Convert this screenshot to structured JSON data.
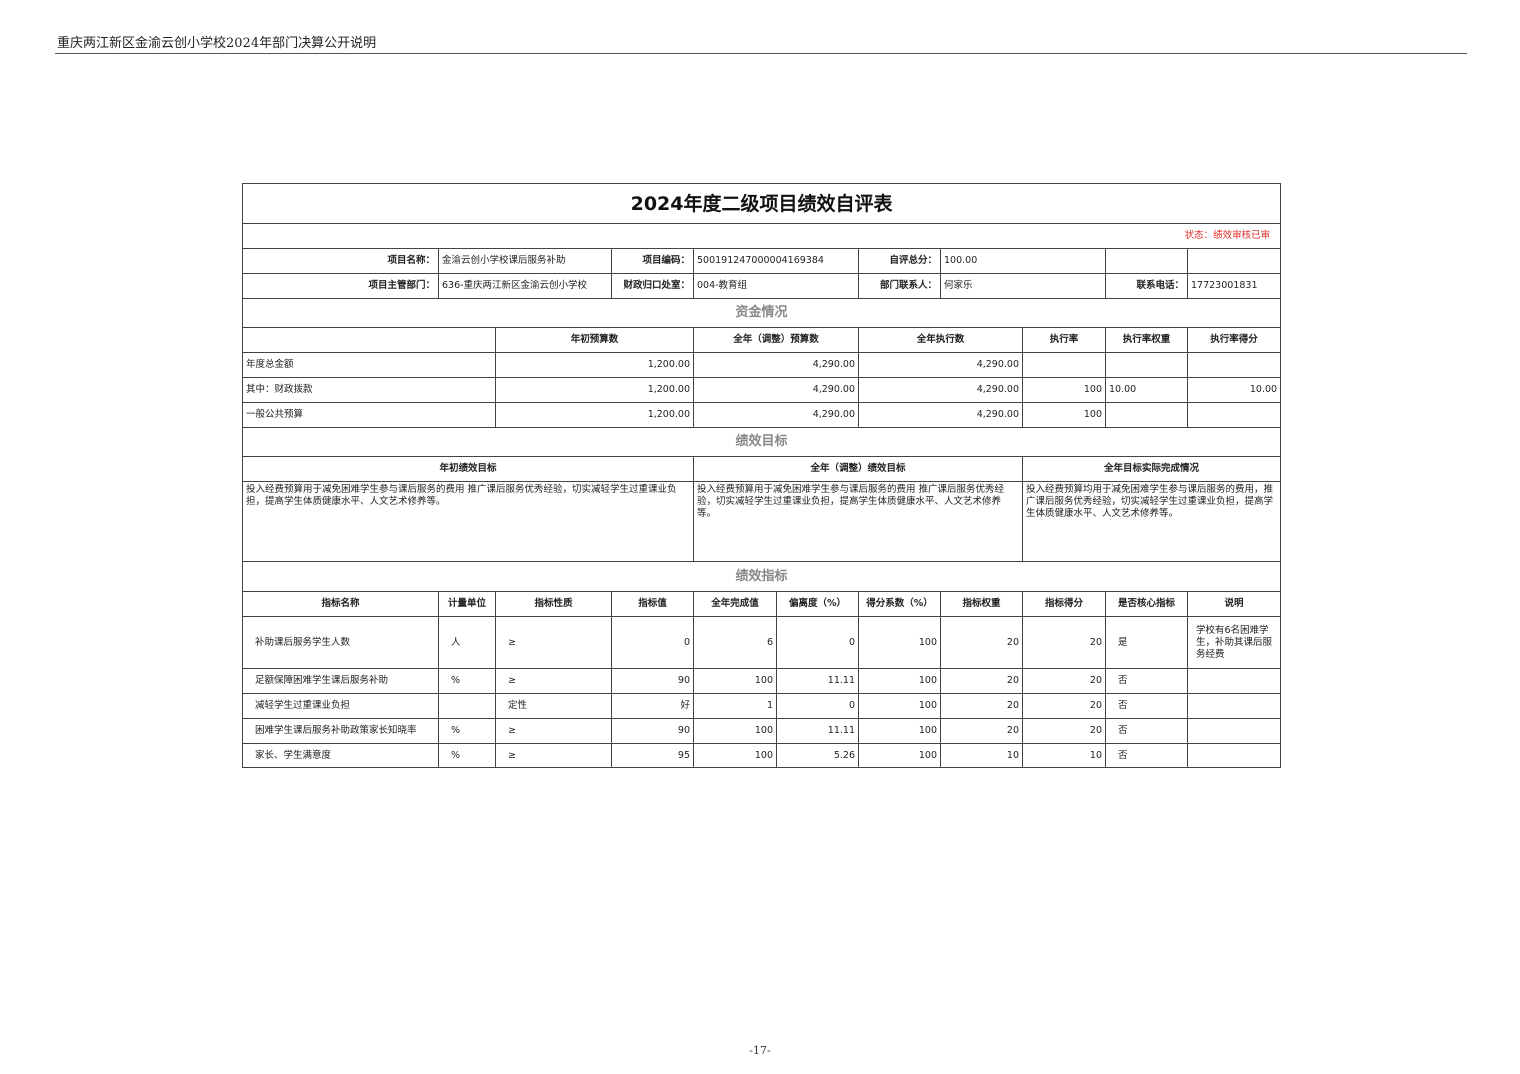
{
  "page_header": "重庆两江新区金渝云创小学校2024年部门决算公开说明",
  "page_number": "-17-",
  "form": {
    "title": "2024年度二级项目绩效自评表",
    "status": "状态：绩效审核已审",
    "info": {
      "project_name_label": "项目名称：",
      "project_name": "金渝云创小学校课后服务补助",
      "project_code_label": "项目编码：",
      "project_code": "500191247000004169384",
      "total_score_label": "自评总分：",
      "total_score": "100.00",
      "dept_label": "项目主管部门：",
      "dept": "636-重庆两江新区金渝云创小学校",
      "finance_office_label": "财政归口处室：",
      "finance_office": "004-教育组",
      "contact_label": "部门联系人：",
      "contact": "何家乐",
      "phone_label": "联系电话：",
      "phone": "17723001831"
    },
    "funds": {
      "section_title": "资金情况",
      "headers": [
        "",
        "年初预算数",
        "全年（调整）预算数",
        "全年执行数",
        "执行率",
        "执行率权重",
        "执行率得分"
      ],
      "rows": [
        [
          "年度总金额",
          "1,200.00",
          "4,290.00",
          "4,290.00",
          "",
          "",
          ""
        ],
        [
          "其中：财政拨款",
          "1,200.00",
          "4,290.00",
          "4,290.00",
          "100",
          "10.00",
          "10.00"
        ],
        [
          "一般公共预算",
          "1,200.00",
          "4,290.00",
          "4,290.00",
          "100",
          "",
          ""
        ]
      ]
    },
    "goals": {
      "section_title": "绩效目标",
      "headers": [
        "年初绩效目标",
        "全年（调整）绩效目标",
        "全年目标实际完成情况"
      ],
      "contents": [
        "投入经费预算用于减免困难学生参与课后服务的费用  推广课后服务优秀经验，切实减轻学生过重课业负担，提高学生体质健康水平、人文艺术修养等。",
        "投入经费预算用于减免困难学生参与课后服务的费用  推广课后服务优秀经验，切实减轻学生过重课业负担，提高学生体质健康水平、人文艺术修养等。",
        "投入经费预算均用于减免困难学生参与课后服务的费用，推广课后服务优秀经验，切实减轻学生过重课业负担，提高学生体质健康水平、人文艺术修养等。"
      ]
    },
    "indicators": {
      "section_title": "绩效指标",
      "headers": [
        "指标名称",
        "计量单位",
        "指标性质",
        "指标值",
        "全年完成值",
        "偏离度（%）",
        "得分系数（%）",
        "指标权重",
        "指标得分",
        "是否核心指标",
        "说明"
      ],
      "rows": [
        [
          "补助课后服务学生人数",
          "人",
          "≥",
          "0",
          "6",
          "0",
          "100",
          "20",
          "20",
          "是",
          "学校有6名困难学生，补助其课后服务经费"
        ],
        [
          "足额保障困难学生课后服务补助",
          "%",
          "≥",
          "90",
          "100",
          "11.11",
          "100",
          "20",
          "20",
          "否",
          ""
        ],
        [
          "减轻学生过重课业负担",
          "",
          "定性",
          "好",
          "1",
          "0",
          "100",
          "20",
          "20",
          "否",
          ""
        ],
        [
          "困难学生课后服务补助政策家长知晓率",
          "%",
          "≥",
          "90",
          "100",
          "11.11",
          "100",
          "20",
          "20",
          "否",
          ""
        ],
        [
          "家长、学生满意度",
          "%",
          "≥",
          "95",
          "100",
          "5.26",
          "100",
          "10",
          "10",
          "否",
          ""
        ]
      ]
    }
  }
}
